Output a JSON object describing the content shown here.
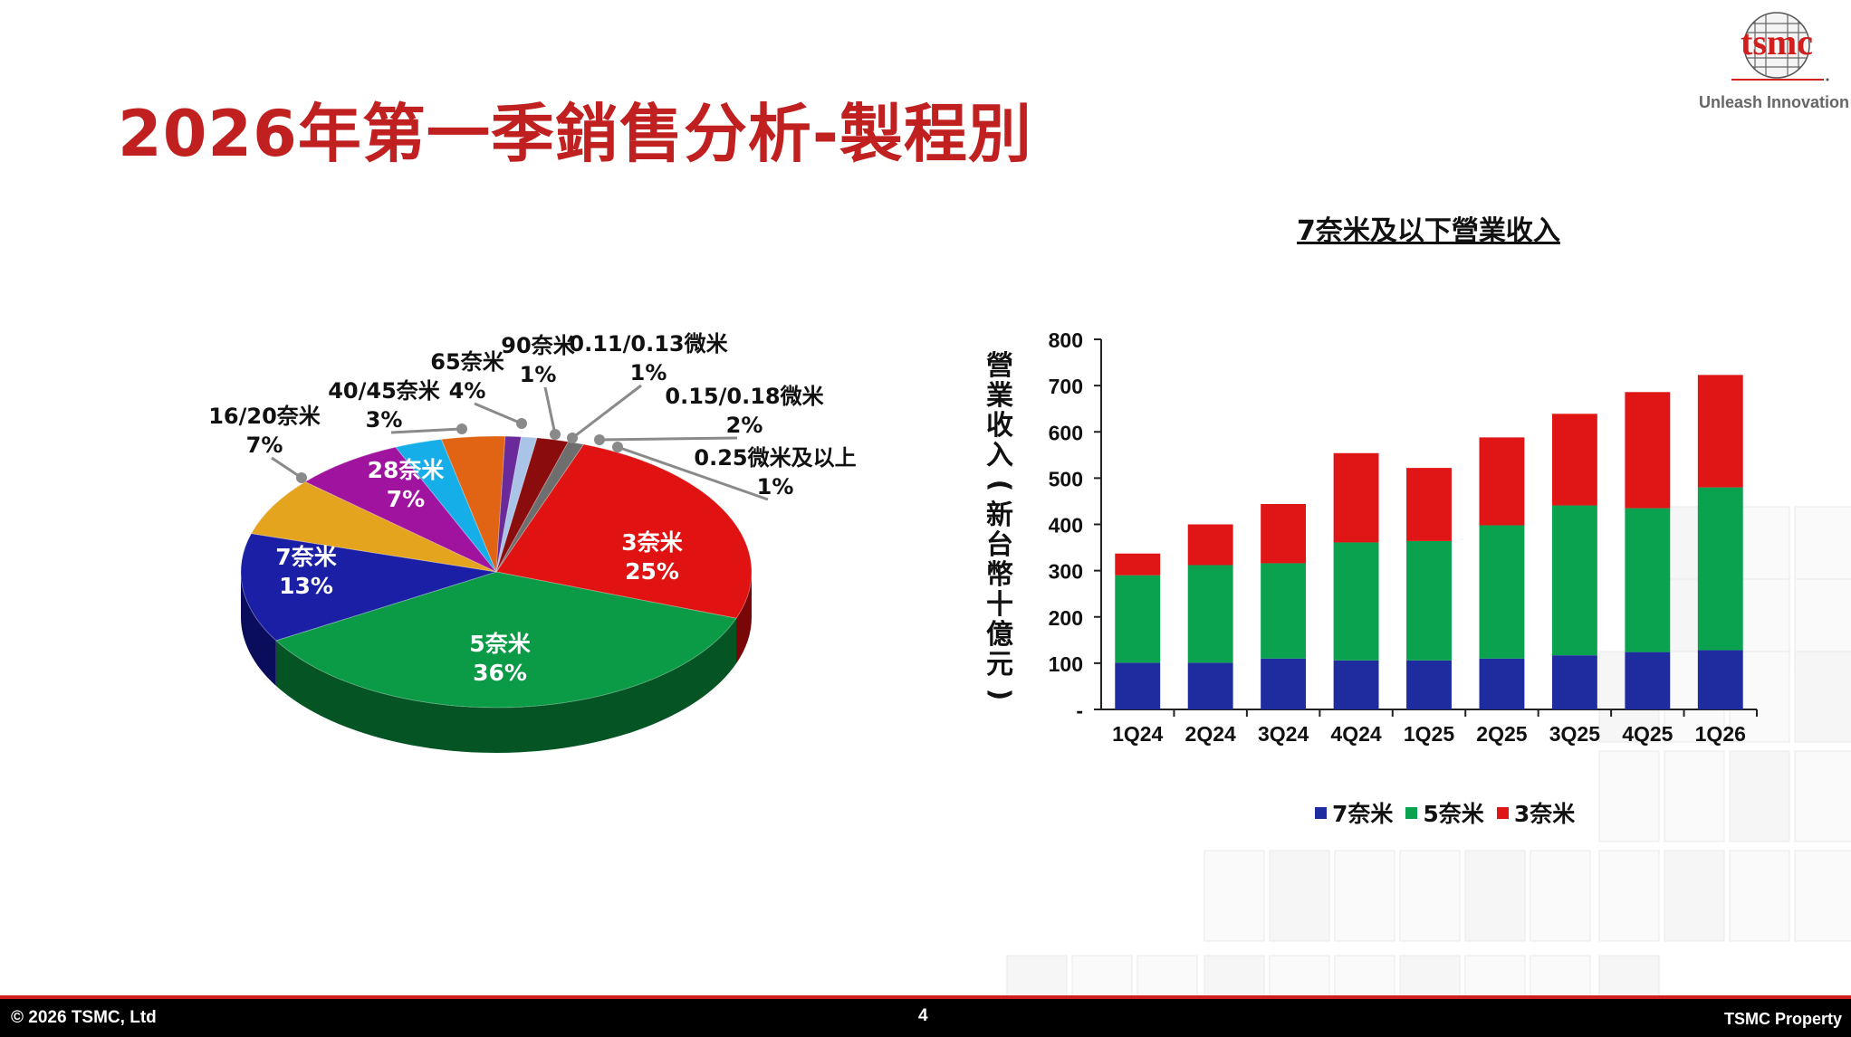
{
  "header": {
    "title": "2026年第一季銷售分析-製程別",
    "logo_text": "tsmc",
    "tagline": "Unleash Innovation"
  },
  "footer": {
    "copyright": "© 2026 TSMC, Ltd",
    "page_number": "4",
    "property": "TSMC Property"
  },
  "colors": {
    "brand_red": "#c0201f",
    "blue": "#1f2ca0",
    "green": "#0aa14f",
    "red": "#e01515"
  },
  "chart_data": [
    {
      "type": "pie",
      "title": "",
      "slices": [
        {
          "label": "3奈米",
          "value": 25,
          "pct": "25%",
          "color": "#e01212",
          "dark": "#7a0707"
        },
        {
          "label": "5奈米",
          "value": 36,
          "pct": "36%",
          "color": "#0b9a45",
          "dark": "#055524"
        },
        {
          "label": "7奈米",
          "value": 13,
          "pct": "13%",
          "color": "#1a1fa6",
          "dark": "#0a0d5c"
        },
        {
          "label": "16/20奈米",
          "value": 7,
          "pct": "7%",
          "color": "#e5a41e",
          "dark": "#8a5e0c"
        },
        {
          "label": "28奈米",
          "value": 7,
          "pct": "7%",
          "color": "#a0139e",
          "dark": "#5a0a58"
        },
        {
          "label": "40/45奈米",
          "value": 3,
          "pct": "3%",
          "color": "#16aee8",
          "dark": "#0a6688"
        },
        {
          "label": "65奈米",
          "value": 4,
          "pct": "4%",
          "color": "#e06414",
          "dark": "#86380a"
        },
        {
          "label": "90奈米",
          "value": 1,
          "pct": "1%",
          "color": "#6a2a9a",
          "dark": "#3a1458"
        },
        {
          "label": "0.11/0.13微米",
          "value": 1,
          "pct": "1%",
          "color": "#a9c4e6",
          "dark": "#5c7696"
        },
        {
          "label": "0.15/0.18微米",
          "value": 2,
          "pct": "2%",
          "color": "#8a0c0c",
          "dark": "#4a0505"
        },
        {
          "label": "0.25微米及以上",
          "value": 1,
          "pct": "1%",
          "color": "#6e6e6e",
          "dark": "#3a3a3a"
        }
      ]
    },
    {
      "type": "bar",
      "stacked": true,
      "title": "7奈米及以下營業收入",
      "ylabel": "營業收入(新台幣十億元)",
      "categories": [
        "1Q24",
        "2Q24",
        "3Q24",
        "4Q24",
        "1Q25",
        "2Q25",
        "3Q25",
        "4Q25",
        "1Q26"
      ],
      "series": [
        {
          "name": "7奈米",
          "color": "#1f2ca0",
          "values": [
            101,
            101,
            110,
            106,
            106,
            110,
            117,
            124,
            128
          ]
        },
        {
          "name": "5奈米",
          "color": "#0aa14f",
          "values": [
            189,
            211,
            206,
            255,
            258,
            288,
            324,
            311,
            352
          ]
        },
        {
          "name": "3奈米",
          "color": "#e01515",
          "values": [
            47,
            88,
            128,
            193,
            158,
            190,
            198,
            251,
            243
          ]
        }
      ],
      "yticks": [
        "-",
        "100",
        "200",
        "300",
        "400",
        "500",
        "600",
        "700",
        "800"
      ],
      "ylim": [
        0,
        800
      ],
      "legend_position": "bottom",
      "grid": false
    }
  ]
}
